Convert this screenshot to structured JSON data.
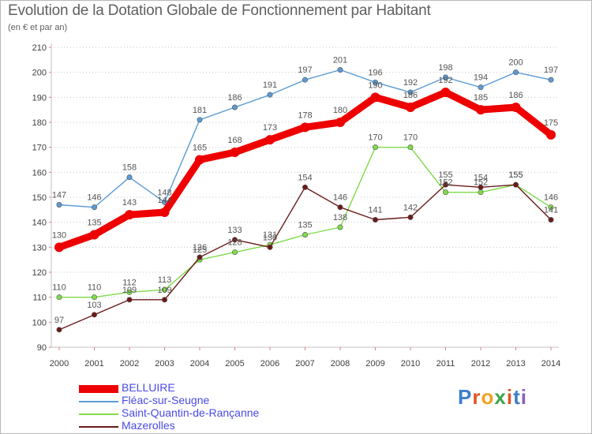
{
  "header": {
    "title": "Evolution de la Dotation Globale de Fonctionnement par Habitant",
    "subtitle": "(en € et par an)"
  },
  "logo": {
    "text": "Proxiti",
    "colors": [
      "#3d7ec8",
      "#e2542b",
      "#f2a21e",
      "#3aa648",
      "#e2542b",
      "#3d7ec8",
      "#8b5fbf"
    ]
  },
  "chart_data": {
    "type": "line",
    "x": [
      2000,
      2001,
      2002,
      2003,
      2004,
      2005,
      2006,
      2007,
      2008,
      2009,
      2010,
      2011,
      2012,
      2013,
      2014
    ],
    "ylim": [
      90,
      210
    ],
    "yticks": [
      90,
      100,
      110,
      120,
      130,
      140,
      150,
      160,
      170,
      180,
      190,
      200,
      210
    ],
    "grid": "horizontal dotted",
    "legend_position": "bottom-left",
    "series": [
      {
        "name": "Fléac-sur-Seugne",
        "color": "#5b9bd5",
        "values": [
          147,
          146,
          158,
          148,
          181,
          186,
          191,
          197,
          201,
          196,
          192,
          198,
          194,
          200,
          197
        ]
      },
      {
        "name": "Saint-Quantin-de-Rançanne",
        "color": "#7fdb4a",
        "values": [
          110,
          110,
          112,
          113,
          125,
          128,
          131,
          135,
          138,
          170,
          170,
          152,
          152,
          155,
          146
        ]
      },
      {
        "name": "Mazerolles",
        "color": "#6b1a1a",
        "values": [
          97,
          103,
          109,
          109,
          126,
          133,
          130,
          154,
          146,
          141,
          142,
          155,
          154,
          155,
          141
        ]
      },
      {
        "name": "BELLUIRE",
        "color": "#ee0000",
        "values": [
          130,
          135,
          143,
          144,
          165,
          168,
          173,
          178,
          180,
          190,
          186,
          192,
          185,
          186,
          175
        ]
      }
    ]
  }
}
